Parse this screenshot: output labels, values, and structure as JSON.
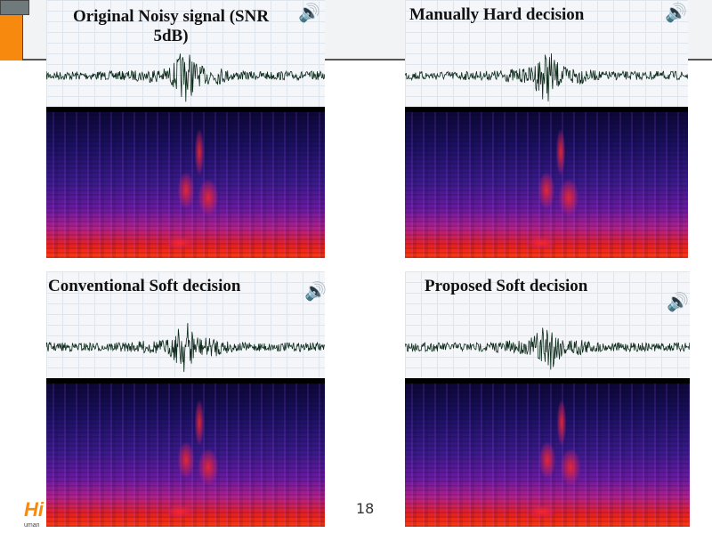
{
  "slide": {
    "page_number": "18",
    "logo_text": "Hi",
    "logo_subtext": "uman"
  },
  "colors": {
    "accent_orange": "#f7890f",
    "header_gray": "#6e7a7c",
    "spectrogram_low": "#0a0630",
    "spectrogram_high": "#ff3a10",
    "waveform": "#0d2a1a"
  },
  "panels": [
    {
      "title": "Original Noisy signal (SNR 5dB)",
      "icon": "speaker-icon"
    },
    {
      "title": "Manually Hard decision",
      "icon": "speaker-icon"
    },
    {
      "title": "Conventional Soft decision",
      "icon": "speaker-icon"
    },
    {
      "title": "Proposed Soft decision",
      "icon": "speaker-icon"
    }
  ]
}
